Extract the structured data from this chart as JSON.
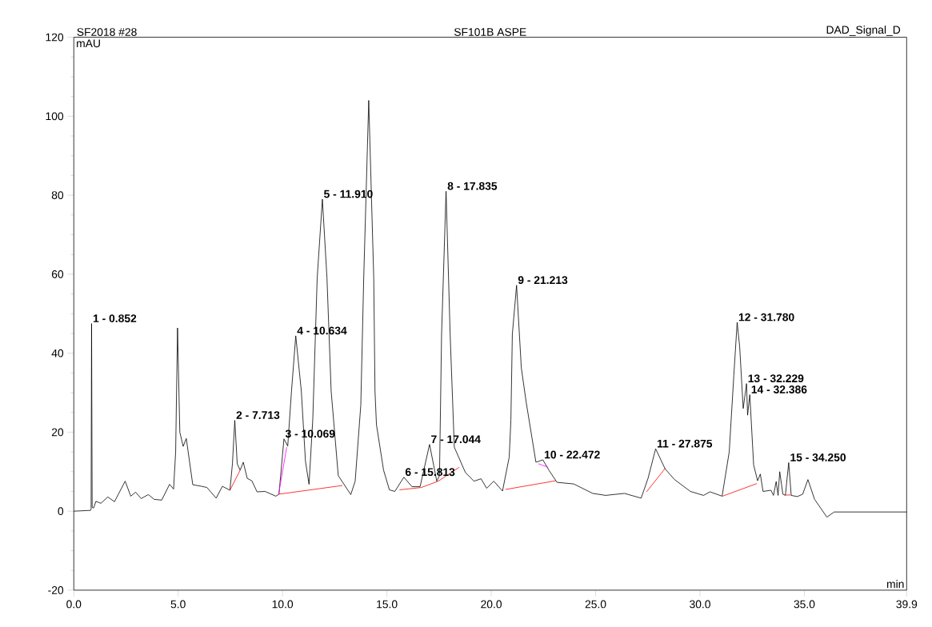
{
  "chart_data": {
    "type": "line",
    "title": "SF101B ASPE",
    "xlabel": "min",
    "ylabel": "mAU",
    "xlim": [
      0,
      39.9
    ],
    "ylim": [
      -20,
      120
    ],
    "xticks": [
      {
        "value": 0,
        "label": "0.0"
      },
      {
        "value": 5,
        "label": "5.0"
      },
      {
        "value": 10,
        "label": "10.0"
      },
      {
        "value": 15,
        "label": "15.0"
      },
      {
        "value": 20,
        "label": "20.0"
      },
      {
        "value": 25,
        "label": "25.0"
      },
      {
        "value": 30,
        "label": "30.0"
      },
      {
        "value": 35,
        "label": "35.0"
      },
      39.9
    ],
    "yticks": [
      -20,
      0,
      20,
      40,
      60,
      80,
      100,
      120
    ],
    "series": [
      {
        "color": "#000000",
        "x": [
          0,
          0.8,
          0.83,
          0.852,
          0.88,
          0.95,
          1.06,
          1.3,
          1.63,
          1.95,
          2.46,
          2.73,
          2.96,
          3.23,
          3.57,
          3.85,
          4.21,
          4.59,
          4.78,
          4.88,
          4.97,
          5.08,
          5.24,
          5.39,
          5.7,
          6.12,
          6.38,
          6.82,
          7.12,
          7.48,
          7.6,
          7.713,
          7.83,
          7.97,
          8.12,
          8.31,
          8.53,
          8.78,
          9.16,
          9.68,
          9.83,
          10.069,
          10.25,
          10.43,
          10.634,
          10.9,
          11.1,
          11.27,
          11.45,
          11.66,
          11.91,
          12.13,
          12.33,
          12.67,
          13.27,
          13.48,
          13.75,
          13.89,
          14.13,
          14.37,
          14.43,
          14.5,
          14.84,
          15.12,
          15.38,
          15.813,
          16.2,
          16.59,
          17.044,
          17.39,
          17.52,
          17.62,
          17.835,
          18.03,
          18.23,
          18.76,
          19.17,
          19.51,
          19.78,
          20.12,
          20.54,
          20.86,
          20.94,
          21.01,
          21.213,
          21.44,
          21.67,
          22.14,
          22.472,
          22.77,
          23.15,
          23.95,
          24.86,
          25.48,
          26.38,
          27.18,
          27.51,
          27.875,
          28.33,
          28.78,
          29.54,
          30.17,
          30.48,
          31.06,
          31.4,
          31.62,
          31.78,
          31.9,
          32.07,
          32.229,
          32.28,
          32.386,
          32.57,
          32.76,
          32.89,
          33.02,
          33.4,
          33.52,
          33.65,
          33.74,
          33.82,
          33.97,
          34.09,
          34.25,
          34.37,
          34.66,
          34.92,
          35.17,
          35.49,
          36.08,
          36.43,
          39.9
        ],
        "values": [
          0,
          0.2,
          0.5,
          47.5,
          1,
          0.8,
          2.5,
          2,
          3.6,
          2.4,
          7.6,
          3.8,
          4.8,
          3.2,
          4.2,
          3,
          2.8,
          6.8,
          5.6,
          15,
          46.4,
          20,
          16.4,
          18.4,
          6.7,
          6.3,
          6,
          3.3,
          6.3,
          5.3,
          12,
          23,
          12,
          10.4,
          12.4,
          8.3,
          7.7,
          4.9,
          5,
          3.8,
          4.3,
          18.3,
          16.5,
          30.4,
          44.4,
          30.4,
          12.6,
          6.8,
          23.3,
          59,
          79,
          59,
          30.4,
          9,
          4.2,
          7.6,
          26.9,
          59,
          104,
          59,
          30.4,
          21.9,
          10.4,
          5.4,
          5,
          8.6,
          6.2,
          6.2,
          16.9,
          7.6,
          9,
          44.8,
          81,
          44.8,
          16.2,
          9.8,
          7.6,
          8.2,
          5.8,
          7.6,
          5.1,
          13.7,
          23,
          44.8,
          57.2,
          36.3,
          27.7,
          12.4,
          13,
          10.3,
          7.3,
          6.9,
          4.5,
          4.0,
          4.5,
          3.3,
          8.3,
          15.8,
          10.7,
          8,
          5,
          4,
          4.9,
          3.8,
          15,
          34.3,
          47.8,
          41.7,
          26,
          32.3,
          24.3,
          29.5,
          11.7,
          7.7,
          9.4,
          5,
          5.3,
          4,
          7.5,
          4,
          10,
          4.3,
          4,
          12.3,
          4,
          3.7,
          4.3,
          8,
          3,
          -1.5,
          -0.2,
          -0.2
        ]
      },
      {
        "color": "#ff0000",
        "x": [
          7.48,
          7.98,
          9,
          9.82,
          12.87,
          14,
          15.6,
          16.65,
          17.46,
          18.46,
          19.5,
          20.68,
          23.09,
          25,
          27.44,
          28.34,
          30,
          31.08,
          32.73,
          33.5,
          34.09,
          34.35
        ],
        "values": [
          5.3,
          10.5,
          null,
          4.3,
          6.5,
          null,
          5.4,
          6,
          7.6,
          11.1,
          null,
          5.5,
          7.7,
          null,
          4.9,
          10.9,
          null,
          3.8,
          7,
          null,
          4.1,
          4.1
        ]
      },
      {
        "color": "#ff00ff",
        "x": [
          9.82,
          10.2,
          16,
          22.26,
          22.73
        ],
        "values": [
          4.5,
          16.2,
          null,
          12,
          11.1
        ]
      }
    ],
    "annotations": [
      "SF2018 #28",
      "DAD_Signal_D",
      {
        "text": "1 - 0.852",
        "x": 0.852,
        "y": 47.5
      },
      {
        "text": "2 - 7.713",
        "x": 7.713,
        "y": 23
      },
      {
        "text": "3 - 10.069",
        "x": 10.069,
        "y": 18.3
      },
      {
        "text": "4 - 10.634",
        "x": 10.634,
        "y": 44.4
      },
      {
        "text": "5 - 11.910",
        "x": 11.91,
        "y": 79
      },
      {
        "text": "6 - 15.813",
        "x": 15.813,
        "y": 8.6
      },
      {
        "text": "7 - 17.044",
        "x": 17.044,
        "y": 16.9
      },
      {
        "text": "8 - 17.835",
        "x": 17.835,
        "y": 81
      },
      {
        "text": "9 - 21.213",
        "x": 21.213,
        "y": 57.2
      },
      {
        "text": "10 - 22.472",
        "x": 22.472,
        "y": 13
      },
      {
        "text": "11 - 27.875",
        "x": 27.875,
        "y": 15.8
      },
      {
        "text": "12 - 31.780",
        "x": 31.78,
        "y": 47.8
      },
      {
        "text": "13 - 32.229",
        "x": 32.229,
        "y": 32.3
      },
      {
        "text": "14 - 32.386",
        "x": 32.386,
        "y": 29.5
      },
      {
        "text": "15 - 34.250",
        "x": 34.25,
        "y": 12.3
      }
    ]
  }
}
